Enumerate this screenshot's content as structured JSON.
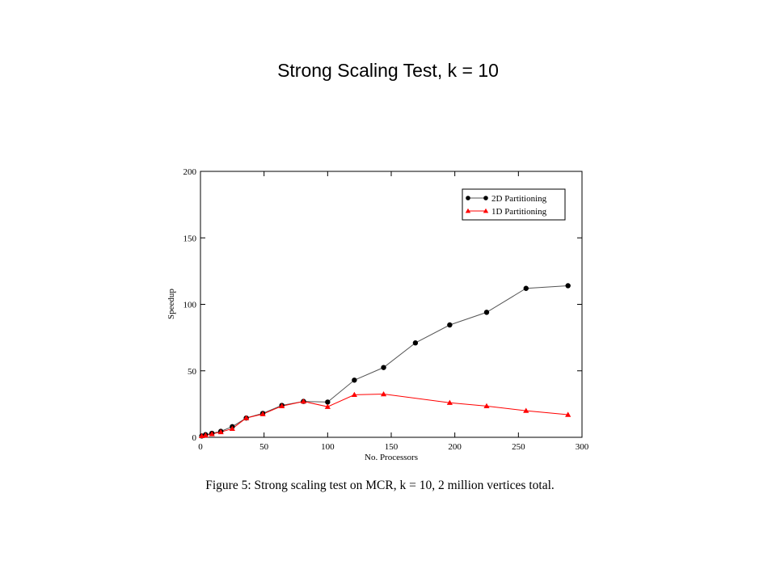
{
  "slide": {
    "title": "Strong Scaling Test, k = 10"
  },
  "figure": {
    "caption": "Figure 5: Strong scaling test on MCR, k = 10, 2 million vertices total."
  },
  "chart_data": {
    "type": "line",
    "xlabel": "No. Processors",
    "ylabel": "Speedup",
    "xlim": [
      0,
      300
    ],
    "ylim": [
      0,
      200
    ],
    "xticks": [
      0,
      50,
      100,
      150,
      200,
      250,
      300
    ],
    "yticks": [
      0,
      50,
      100,
      150,
      200
    ],
    "grid": false,
    "legend_position": "top-right",
    "series": [
      {
        "name": "2D Partitioning",
        "color": "#000000",
        "line_color": "#555555",
        "marker": "circle",
        "points": [
          [
            1,
            1
          ],
          [
            4,
            2
          ],
          [
            9,
            3
          ],
          [
            16,
            4.5
          ],
          [
            25,
            8
          ],
          [
            36,
            14.5
          ],
          [
            49,
            18
          ],
          [
            64,
            24
          ],
          [
            81,
            27
          ],
          [
            100,
            26.5
          ],
          [
            121,
            43
          ],
          [
            144,
            52.5
          ],
          [
            169,
            71
          ],
          [
            196,
            84.5
          ],
          [
            225,
            94
          ],
          [
            256,
            112
          ],
          [
            289,
            114
          ]
        ]
      },
      {
        "name": "1D Partitioning",
        "color": "#ff0000",
        "line_color": "#ff0000",
        "marker": "triangle",
        "points": [
          [
            1,
            1
          ],
          [
            4,
            1.5
          ],
          [
            9,
            2.5
          ],
          [
            16,
            4
          ],
          [
            25,
            6.5
          ],
          [
            36,
            14.5
          ],
          [
            49,
            17.5
          ],
          [
            64,
            23.5
          ],
          [
            81,
            27
          ],
          [
            100,
            23
          ],
          [
            121,
            32
          ],
          [
            144,
            32.5
          ],
          [
            196,
            26
          ],
          [
            225,
            23.5
          ],
          [
            256,
            20
          ],
          [
            289,
            17
          ]
        ]
      }
    ]
  }
}
